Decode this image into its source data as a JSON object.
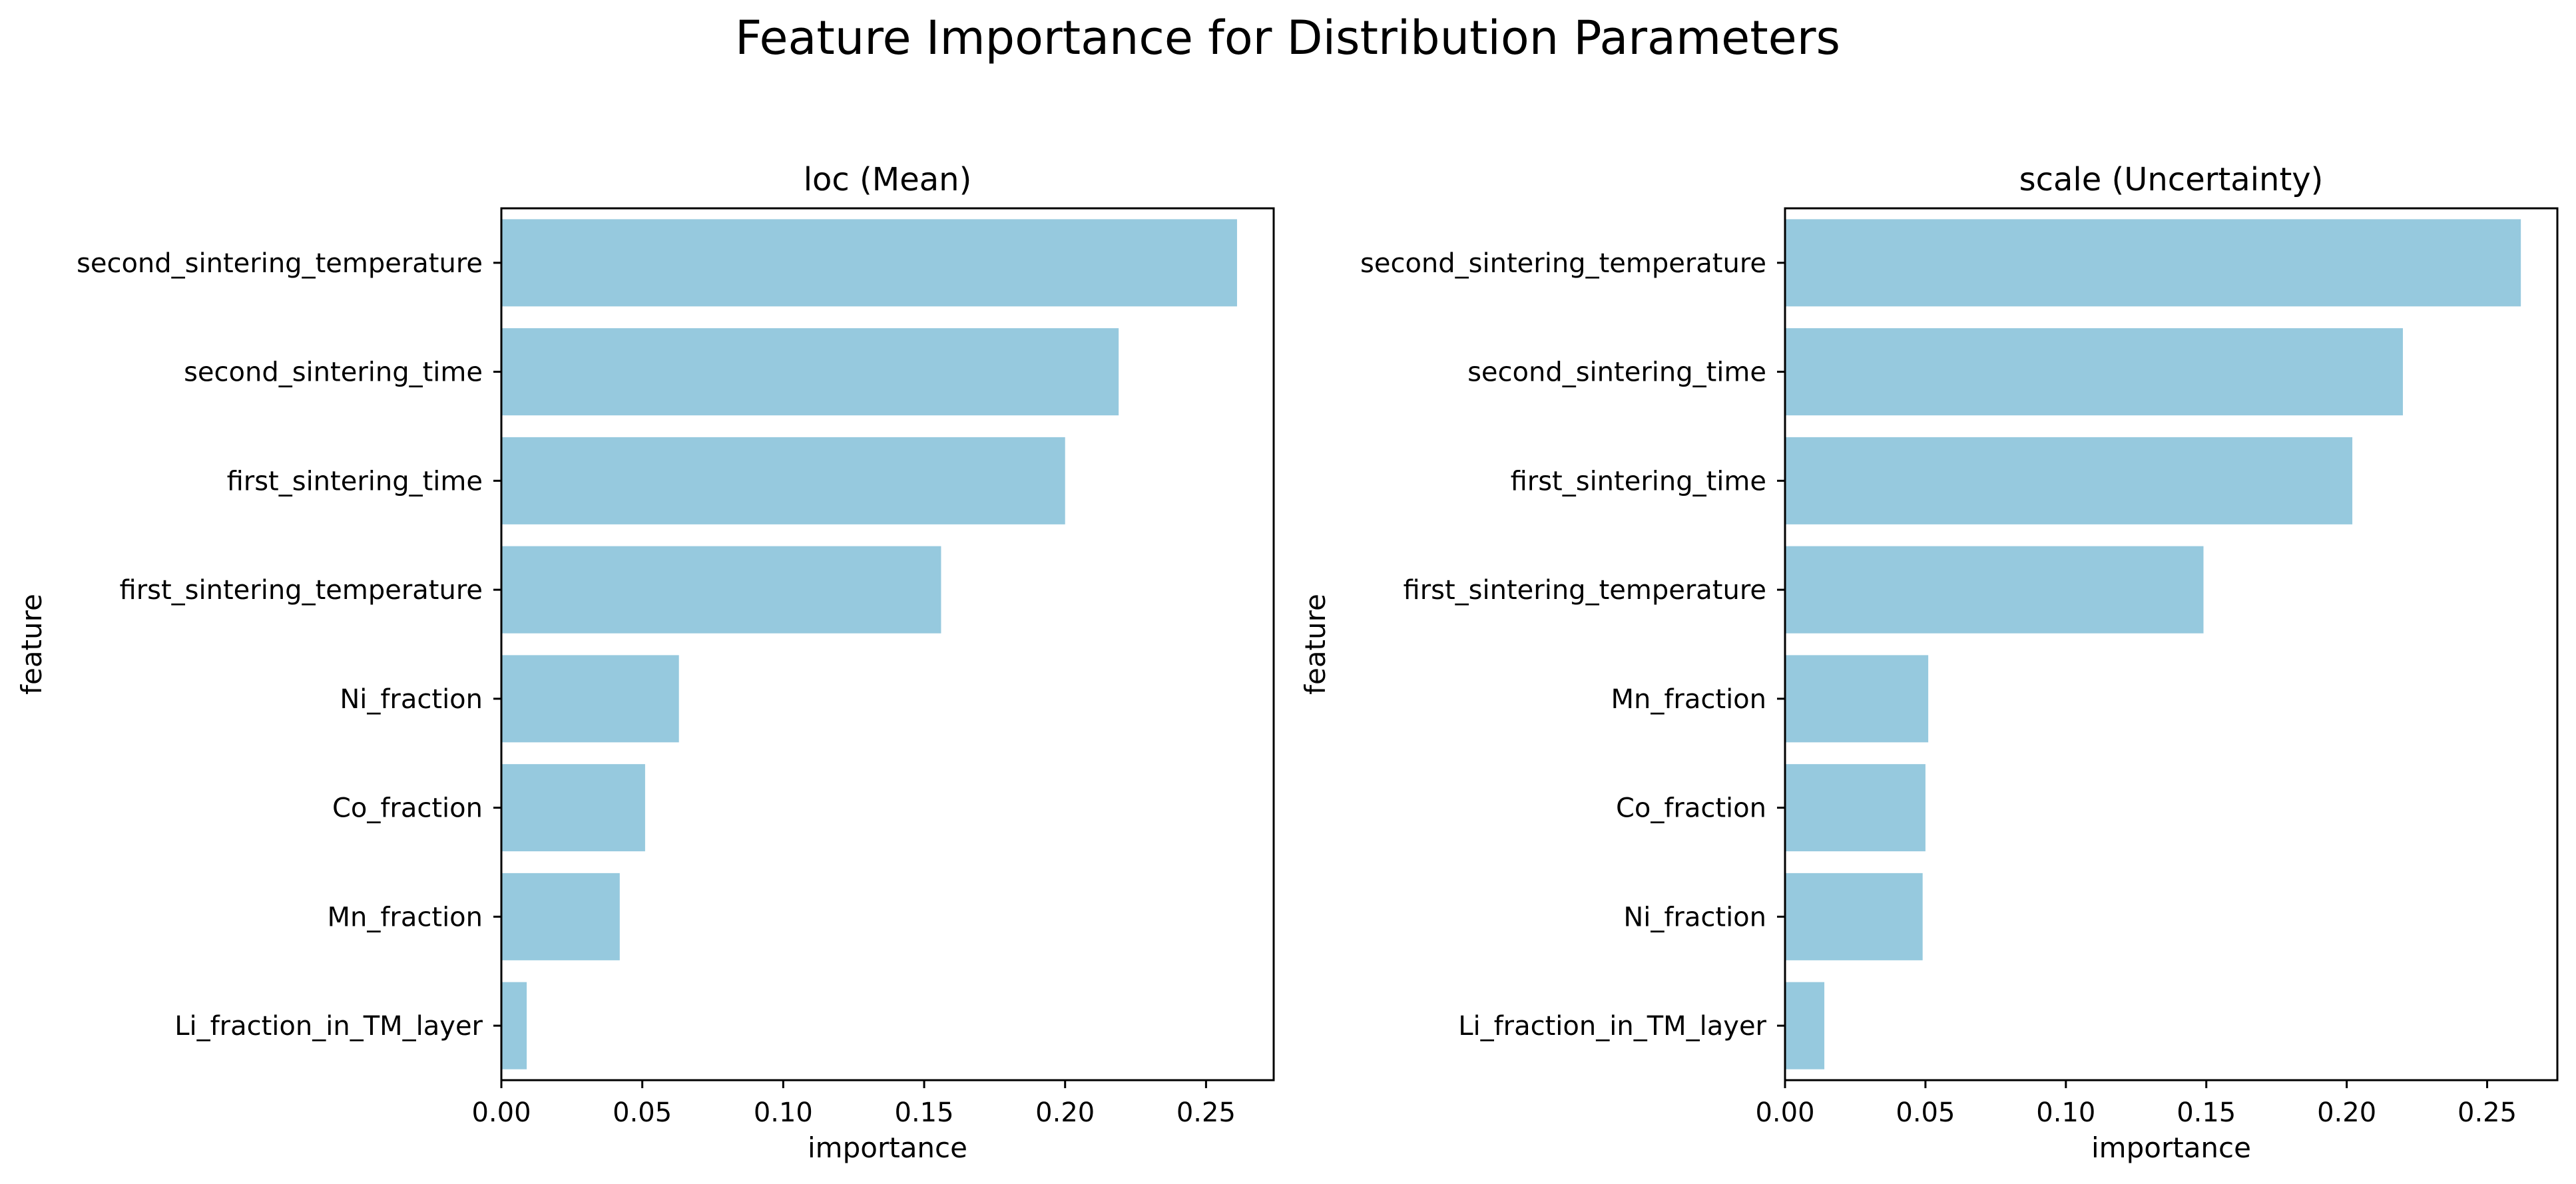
{
  "figure": {
    "title": "Feature Importance for Distribution Parameters"
  },
  "colors": {
    "bar": "#96c9de",
    "axis": "#000000",
    "background": "#ffffff"
  },
  "chart_data": [
    {
      "type": "bar",
      "orientation": "horizontal",
      "title": "loc (Mean)",
      "xlabel": "importance",
      "ylabel": "feature",
      "xlim": [
        0,
        0.274
      ],
      "xticks": [
        0.0,
        0.05,
        0.1,
        0.15,
        0.2,
        0.25
      ],
      "xtick_labels": [
        "0.00",
        "0.05",
        "0.10",
        "0.15",
        "0.20",
        "0.25"
      ],
      "grid": false,
      "categories": [
        "second_sintering_temperature",
        "second_sintering_time",
        "first_sintering_time",
        "first_sintering_temperature",
        "Ni_fraction",
        "Co_fraction",
        "Mn_fraction",
        "Li_fraction_in_TM_layer"
      ],
      "values": [
        0.261,
        0.219,
        0.2,
        0.156,
        0.063,
        0.051,
        0.042,
        0.009
      ]
    },
    {
      "type": "bar",
      "orientation": "horizontal",
      "title": "scale (Uncertainty)",
      "xlabel": "importance",
      "ylabel": "feature",
      "xlim": [
        0,
        0.275
      ],
      "xticks": [
        0.0,
        0.05,
        0.1,
        0.15,
        0.2,
        0.25
      ],
      "xtick_labels": [
        "0.00",
        "0.05",
        "0.10",
        "0.15",
        "0.20",
        "0.25"
      ],
      "grid": false,
      "categories": [
        "second_sintering_temperature",
        "second_sintering_time",
        "first_sintering_time",
        "first_sintering_temperature",
        "Mn_fraction",
        "Co_fraction",
        "Ni_fraction",
        "Li_fraction_in_TM_layer"
      ],
      "values": [
        0.262,
        0.22,
        0.202,
        0.149,
        0.051,
        0.05,
        0.049,
        0.014
      ]
    }
  ]
}
